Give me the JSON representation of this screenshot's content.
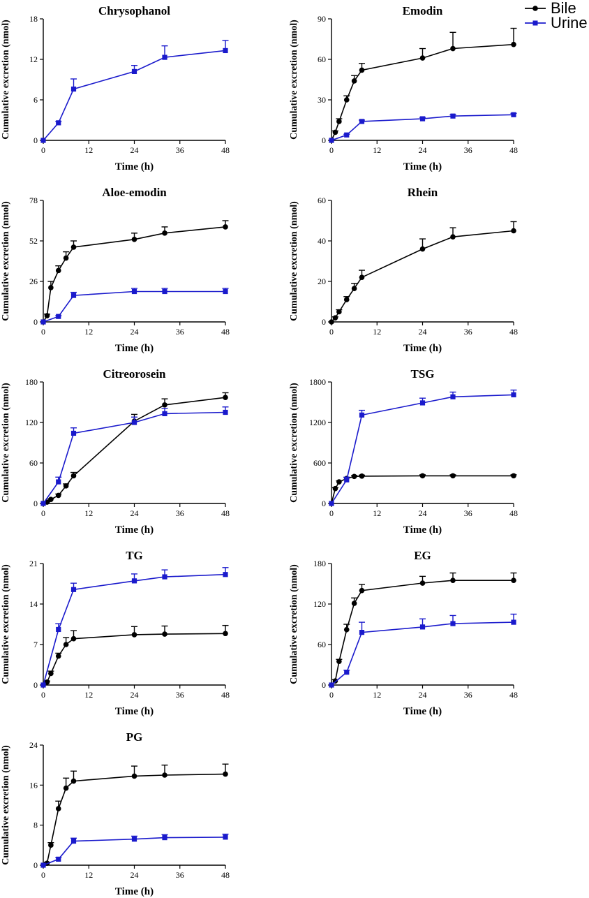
{
  "legend": {
    "entries": [
      {
        "name": "Bile",
        "color": "#000000",
        "marker": "circle"
      },
      {
        "name": "Urine",
        "color": "#1a1acc",
        "marker": "square"
      }
    ]
  },
  "chart_data": [
    {
      "type": "line",
      "title": "Chrysophanol",
      "xlabel": "Time (h)",
      "ylabel": "Cumulative excretion (nmol)",
      "xlim": [
        0,
        48
      ],
      "ylim": [
        0,
        18
      ],
      "xticks": [
        0,
        12,
        24,
        36,
        48
      ],
      "yticks": [
        0,
        6,
        12,
        18
      ],
      "series": [
        {
          "name": "Urine",
          "color": "#1a1acc",
          "marker": "square",
          "x": [
            0,
            4,
            8,
            24,
            32,
            48
          ],
          "y": [
            0,
            2.6,
            7.6,
            10.2,
            12.3,
            13.3
          ],
          "err": [
            0,
            0.2,
            1.5,
            0.9,
            1.7,
            1.5
          ]
        }
      ]
    },
    {
      "type": "line",
      "title": "Emodin",
      "xlabel": "Time (h)",
      "ylabel": "Cumulative excretion (nmol)",
      "xlim": [
        0,
        48
      ],
      "ylim": [
        0,
        90
      ],
      "xticks": [
        0,
        12,
        24,
        36,
        48
      ],
      "yticks": [
        0,
        30,
        60,
        90
      ],
      "series": [
        {
          "name": "Bile",
          "color": "#000000",
          "marker": "circle",
          "x": [
            0,
            1,
            2,
            4,
            6,
            8,
            24,
            32,
            48
          ],
          "y": [
            0,
            6,
            14,
            30,
            44,
            52,
            61,
            68,
            71
          ],
          "err": [
            0,
            1,
            2,
            3,
            4,
            5,
            7,
            12,
            12
          ]
        },
        {
          "name": "Urine",
          "color": "#1a1acc",
          "marker": "square",
          "x": [
            0,
            4,
            8,
            24,
            32,
            48
          ],
          "y": [
            0,
            4,
            14,
            16,
            18,
            19
          ],
          "err": [
            0,
            0.5,
            1,
            1,
            1,
            1
          ]
        }
      ]
    },
    {
      "type": "line",
      "title": "Aloe-emodin",
      "xlabel": "Time (h)",
      "ylabel": "Cumulative excretion (nmol)",
      "xlim": [
        0,
        48
      ],
      "ylim": [
        0,
        78
      ],
      "xticks": [
        0,
        12,
        24,
        36,
        48
      ],
      "yticks": [
        0,
        26,
        52,
        78
      ],
      "series": [
        {
          "name": "Bile",
          "color": "#000000",
          "marker": "circle",
          "x": [
            0,
            1,
            2,
            4,
            6,
            8,
            24,
            32,
            48
          ],
          "y": [
            0,
            4,
            22,
            33,
            41,
            48,
            53,
            57,
            61
          ],
          "err": [
            0,
            1,
            4,
            3,
            4,
            4,
            4,
            4,
            4
          ]
        },
        {
          "name": "Urine",
          "color": "#1a1acc",
          "marker": "square",
          "x": [
            0,
            4,
            8,
            24,
            32,
            48
          ],
          "y": [
            0,
            3.5,
            17,
            19.5,
            19.5,
            19.5
          ],
          "err": [
            0,
            0.5,
            2,
            2,
            2,
            2
          ]
        }
      ]
    },
    {
      "type": "line",
      "title": "Rhein",
      "xlabel": "Time (h)",
      "ylabel": "Cumulative excretion (nmol)",
      "xlim": [
        0,
        48
      ],
      "ylim": [
        0,
        60
      ],
      "xticks": [
        0,
        12,
        24,
        36,
        48
      ],
      "yticks": [
        0,
        20,
        40,
        60
      ],
      "series": [
        {
          "name": "Bile",
          "color": "#000000",
          "marker": "circle",
          "x": [
            0,
            1,
            2,
            4,
            6,
            8,
            24,
            32,
            48
          ],
          "y": [
            0,
            2,
            5,
            11,
            16.5,
            22,
            36,
            42,
            45
          ],
          "err": [
            0,
            0.5,
            1,
            1.5,
            2.5,
            3.5,
            5,
            4.5,
            4.5
          ]
        }
      ]
    },
    {
      "type": "line",
      "title": "Citreorosein",
      "xlabel": "Time (h)",
      "ylabel": "Cumulative excretion (nmol)",
      "xlim": [
        0,
        48
      ],
      "ylim": [
        0,
        180
      ],
      "xticks": [
        0,
        12,
        24,
        36,
        48
      ],
      "yticks": [
        0,
        60,
        120,
        180
      ],
      "series": [
        {
          "name": "Bile",
          "color": "#000000",
          "marker": "circle",
          "x": [
            0,
            1,
            2,
            4,
            6,
            8,
            24,
            32,
            48
          ],
          "y": [
            0,
            2,
            6,
            12,
            26,
            41,
            122,
            146,
            157
          ],
          "err": [
            0,
            0.5,
            1,
            2,
            3,
            5,
            10,
            9,
            7
          ]
        },
        {
          "name": "Urine",
          "color": "#1a1acc",
          "marker": "square",
          "x": [
            0,
            4,
            8,
            24,
            32,
            48
          ],
          "y": [
            0,
            32,
            104,
            120,
            133,
            135
          ],
          "err": [
            0,
            7,
            8,
            8,
            8,
            8
          ]
        }
      ]
    },
    {
      "type": "line",
      "title": "TSG",
      "xlabel": "Time (h)",
      "ylabel": "Cumulative excretion (nmol)",
      "xlim": [
        0,
        48
      ],
      "ylim": [
        0,
        1800
      ],
      "xticks": [
        0,
        12,
        24,
        36,
        48
      ],
      "yticks": [
        0,
        600,
        1200,
        1800
      ],
      "series": [
        {
          "name": "Bile",
          "color": "#000000",
          "marker": "circle",
          "x": [
            0,
            1,
            2,
            4,
            6,
            8,
            24,
            32,
            48
          ],
          "y": [
            0,
            220,
            320,
            370,
            400,
            405,
            410,
            410,
            410
          ],
          "err": [
            0,
            15,
            15,
            15,
            15,
            15,
            15,
            15,
            15
          ]
        },
        {
          "name": "Urine",
          "color": "#1a1acc",
          "marker": "square",
          "x": [
            0,
            4,
            8,
            24,
            32,
            48
          ],
          "y": [
            0,
            350,
            1310,
            1490,
            1580,
            1610
          ],
          "err": [
            0,
            40,
            70,
            70,
            70,
            70
          ]
        }
      ]
    },
    {
      "type": "line",
      "title": "TG",
      "xlabel": "Time (h)",
      "ylabel": "Cumulative excretion (nmol)",
      "xlim": [
        0,
        48
      ],
      "ylim": [
        0,
        21
      ],
      "xticks": [
        0,
        12,
        24,
        36,
        48
      ],
      "yticks": [
        0,
        7,
        14,
        21
      ],
      "series": [
        {
          "name": "Bile",
          "color": "#000000",
          "marker": "circle",
          "x": [
            0,
            1,
            2,
            4,
            6,
            8,
            24,
            32,
            48
          ],
          "y": [
            0,
            0.5,
            2,
            5,
            7,
            8,
            8.7,
            8.8,
            8.9
          ],
          "err": [
            0,
            0.2,
            0.4,
            0.5,
            1.2,
            1.4,
            1.4,
            1.4,
            1.4
          ]
        },
        {
          "name": "Urine",
          "color": "#1a1acc",
          "marker": "square",
          "x": [
            0,
            4,
            8,
            24,
            32,
            48
          ],
          "y": [
            0,
            9.6,
            16.5,
            18,
            18.7,
            19.1
          ],
          "err": [
            0,
            1,
            1.1,
            1.2,
            1.2,
            1.2
          ]
        }
      ]
    },
    {
      "type": "line",
      "title": "EG",
      "xlabel": "Time (h)",
      "ylabel": "Cumulative excretion (nmol)",
      "xlim": [
        0,
        48
      ],
      "ylim": [
        0,
        180
      ],
      "xticks": [
        0,
        12,
        24,
        36,
        48
      ],
      "yticks": [
        0,
        60,
        120,
        180
      ],
      "series": [
        {
          "name": "Bile",
          "color": "#000000",
          "marker": "circle",
          "x": [
            0,
            1,
            2,
            4,
            6,
            8,
            24,
            32,
            48
          ],
          "y": [
            0,
            6,
            35,
            82,
            121,
            140,
            151,
            155,
            155
          ],
          "err": [
            0,
            2,
            3,
            8,
            8,
            9,
            10,
            11,
            11
          ]
        },
        {
          "name": "Urine",
          "color": "#1a1acc",
          "marker": "square",
          "x": [
            0,
            4,
            8,
            24,
            32,
            48
          ],
          "y": [
            0,
            19,
            78,
            86,
            91,
            93
          ],
          "err": [
            0,
            3,
            15,
            12,
            12,
            12
          ]
        }
      ]
    },
    {
      "type": "line",
      "title": "PG",
      "xlabel": "Time (h)",
      "ylabel": "Cumulative excretion (nmol)",
      "xlim": [
        0,
        48
      ],
      "ylim": [
        0,
        24
      ],
      "xticks": [
        0,
        12,
        24,
        36,
        48
      ],
      "yticks": [
        0,
        8,
        16,
        24
      ],
      "series": [
        {
          "name": "Bile",
          "color": "#000000",
          "marker": "circle",
          "x": [
            0,
            1,
            2,
            4,
            6,
            8,
            24,
            32,
            48
          ],
          "y": [
            0,
            0.4,
            4,
            11.3,
            15.4,
            16.8,
            17.8,
            18,
            18.2
          ],
          "err": [
            0,
            0.2,
            0.5,
            1.5,
            2,
            2,
            2,
            2,
            2
          ]
        },
        {
          "name": "Urine",
          "color": "#1a1acc",
          "marker": "square",
          "x": [
            0,
            4,
            8,
            24,
            32,
            48
          ],
          "y": [
            0,
            1.2,
            4.8,
            5.2,
            5.5,
            5.6
          ],
          "err": [
            0,
            0.3,
            0.6,
            0.6,
            0.6,
            0.6
          ]
        }
      ]
    }
  ]
}
